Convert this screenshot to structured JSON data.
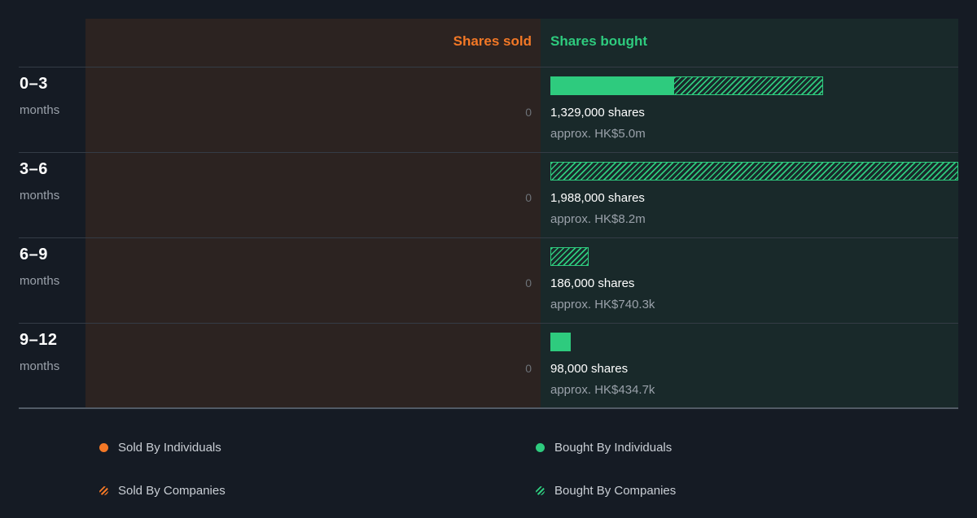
{
  "header": {
    "sold_label": "Shares sold",
    "bought_label": "Shares bought"
  },
  "rows": [
    {
      "period": "0–3",
      "unit": "months",
      "sold": "0",
      "shares": "1,329,000 shares",
      "approx": "approx. HK$5.0m"
    },
    {
      "period": "3–6",
      "unit": "months",
      "sold": "0",
      "shares": "1,988,000 shares",
      "approx": "approx. HK$8.2m"
    },
    {
      "period": "6–9",
      "unit": "months",
      "sold": "0",
      "shares": "186,000 shares",
      "approx": "approx. HK$740.3k"
    },
    {
      "period": "9–12",
      "unit": "months",
      "sold": "0",
      "shares": "98,000 shares",
      "approx": "approx. HK$434.7k"
    }
  ],
  "legend": {
    "sold_individuals": "Sold By Individuals",
    "bought_individuals": "Bought By Individuals",
    "sold_companies": "Sold By Companies",
    "bought_companies": "Bought By Companies"
  },
  "colors": {
    "sold": "#f37826",
    "bought": "#2ecb7e"
  },
  "chart_data": {
    "type": "bar",
    "categories": [
      "0–3 months",
      "3–6 months",
      "6–9 months",
      "9–12 months"
    ],
    "series": [
      {
        "name": "Sold By Individuals",
        "values": [
          0,
          0,
          0,
          0
        ]
      },
      {
        "name": "Sold By Companies",
        "values": [
          0,
          0,
          0,
          0
        ]
      },
      {
        "name": "Bought By Individuals",
        "values": [
          600000,
          0,
          0,
          98000
        ]
      },
      {
        "name": "Bought By Companies",
        "values": [
          729000,
          1988000,
          186000,
          0
        ]
      }
    ],
    "max_value": 1988000
  }
}
